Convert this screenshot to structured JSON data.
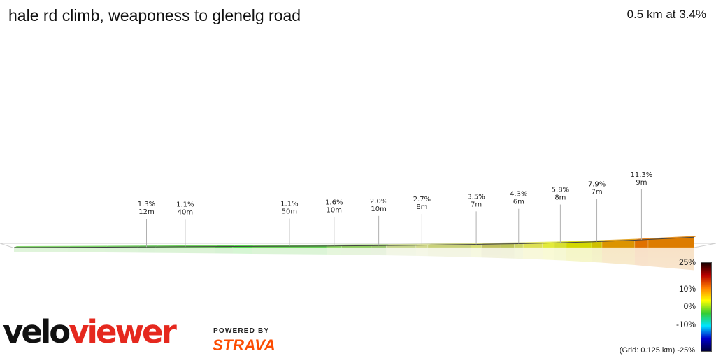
{
  "title": "hale rd climb, weaponess to glenelg road",
  "summary": "0.5 km at 3.4%",
  "brand": {
    "velo": "velo",
    "viewer": "viewer",
    "powered": "POWERED BY",
    "strava": "STRAVA",
    "strava_color": "#fc4c02"
  },
  "grid_note": "(Grid: 0.125 km) -25%",
  "color_scale": {
    "labels": [
      "25%",
      "10%",
      "0%",
      "-10%"
    ],
    "colors": [
      "#1a0000",
      "#b80000",
      "#ff8000",
      "#ffff00",
      "#33cc33",
      "#00e5ff",
      "#0000cc",
      "#00003a"
    ]
  },
  "chart_data": {
    "type": "area",
    "title": "hale rd climb, weaponess to glenelg road",
    "x_unit": "km",
    "y_unit": "m",
    "grid_step_km": 0.125,
    "total_distance_km": 0.5,
    "average_gradient_pct": 3.4,
    "segments": [
      {
        "len": 0.036,
        "grade": 0.8,
        "color": "#6fcf55"
      },
      {
        "len": 0.025,
        "grade": 1.0,
        "color": "#62cc4b"
      },
      {
        "len": 0.022,
        "grade": 1.1,
        "color": "#5ec94a"
      },
      {
        "len": 0.012,
        "grade": 1.3,
        "color": "#55c644",
        "label": true
      },
      {
        "len": 0.04,
        "grade": 1.1,
        "color": "#5bca46",
        "label": true
      },
      {
        "len": 0.012,
        "grade": 1.2,
        "color": "#47c23a"
      },
      {
        "len": 0.013,
        "grade": 1.3,
        "color": "#3fd436"
      },
      {
        "len": 0.05,
        "grade": 1.1,
        "color": "#5acd45",
        "label": true
      },
      {
        "len": 0.01,
        "grade": 1.6,
        "color": "#8ad85c",
        "label": true
      },
      {
        "len": 0.02,
        "grade": 1.8,
        "color": "#8ecb5e"
      },
      {
        "len": 0.01,
        "grade": 2.0,
        "color": "#98c46a",
        "label": true
      },
      {
        "len": 0.02,
        "grade": 2.2,
        "color": "#c5d48a"
      },
      {
        "len": 0.008,
        "grade": 2.7,
        "color": "#d1d98c",
        "label": true
      },
      {
        "len": 0.029,
        "grade": 3.0,
        "color": "#c9d17a"
      },
      {
        "len": 0.007,
        "grade": 3.5,
        "color": "#d7dd74",
        "label": true
      },
      {
        "len": 0.013,
        "grade": 3.8,
        "color": "#c0c060"
      },
      {
        "len": 0.009,
        "grade": 4.0,
        "color": "#bdc45a"
      },
      {
        "len": 0.006,
        "grade": 4.3,
        "color": "#cdd465",
        "label": true
      },
      {
        "len": 0.013,
        "grade": 4.6,
        "color": "#dde054"
      },
      {
        "len": 0.008,
        "grade": 5.2,
        "color": "#e2ea3a"
      },
      {
        "len": 0.008,
        "grade": 5.8,
        "color": "#d7df30",
        "label": true
      },
      {
        "len": 0.017,
        "grade": 6.5,
        "color": "#d2d800"
      },
      {
        "len": 0.007,
        "grade": 7.9,
        "color": "#cfc000",
        "label": true
      },
      {
        "len": 0.022,
        "grade": 8.5,
        "color": "#dc9400"
      },
      {
        "len": 0.009,
        "grade": 11.3,
        "color": "#e07100",
        "label": true
      },
      {
        "len": 0.031,
        "grade": 10.8,
        "color": "#dd7c00"
      }
    ],
    "annotations": [
      {
        "grade": "1.3%",
        "length": "12m"
      },
      {
        "grade": "1.1%",
        "length": "40m"
      },
      {
        "grade": "1.1%",
        "length": "50m"
      },
      {
        "grade": "1.6%",
        "length": "10m"
      },
      {
        "grade": "2.0%",
        "length": "10m"
      },
      {
        "grade": "2.7%",
        "length": "8m"
      },
      {
        "grade": "3.5%",
        "length": "7m"
      },
      {
        "grade": "4.3%",
        "length": "6m"
      },
      {
        "grade": "5.8%",
        "length": "8m"
      },
      {
        "grade": "7.9%",
        "length": "7m"
      },
      {
        "grade": "11.3%",
        "length": "9m"
      }
    ]
  }
}
